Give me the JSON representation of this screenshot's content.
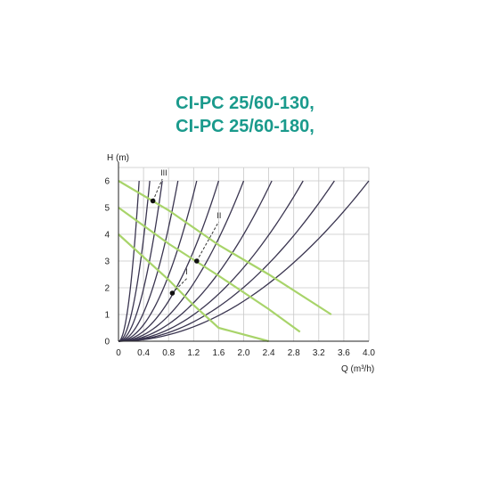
{
  "title_lines": [
    "CI-PC 25/60-130,",
    "CI-PC 25/60-180,"
  ],
  "chart_data": {
    "type": "line",
    "xlabel": "Q (m³/h)",
    "ylabel": "H (m)",
    "xlim": [
      0,
      4.0
    ],
    "ylim": [
      0,
      6.5
    ],
    "x_ticks": [
      "0",
      "0.4",
      "0.8",
      "1.2",
      "1.6",
      "2.0",
      "2.4",
      "2.8",
      "3.2",
      "3.6",
      "4.0"
    ],
    "y_ticks": [
      "0",
      "1",
      "2",
      "3",
      "4",
      "5",
      "6"
    ],
    "grid": true,
    "pump_curves": [
      {
        "label": "I",
        "points": [
          [
            0,
            4.0
          ],
          [
            0.8,
            2.3
          ],
          [
            1.2,
            1.35
          ],
          [
            1.6,
            0.5
          ],
          [
            2.4,
            0
          ]
        ]
      },
      {
        "label": "II",
        "points": [
          [
            0,
            5.0
          ],
          [
            0.8,
            3.65
          ],
          [
            1.6,
            2.45
          ],
          [
            2.4,
            1.2
          ],
          [
            2.9,
            0.35
          ]
        ]
      },
      {
        "label": "III",
        "points": [
          [
            0,
            6.0
          ],
          [
            0.8,
            4.9
          ],
          [
            1.6,
            3.6
          ],
          [
            2.4,
            2.5
          ],
          [
            3.4,
            1.0
          ]
        ]
      }
    ],
    "system_curve_endpoints_q": [
      0.33,
      0.5,
      0.7,
      0.95,
      1.25,
      1.6,
      2.0,
      2.45,
      2.95,
      3.45,
      4.0
    ],
    "system_curve_endpoint_h": 6.0,
    "duty_points": [
      {
        "label": "I",
        "q": 0.86,
        "h": 1.8
      },
      {
        "label": "II",
        "q": 1.25,
        "h": 3.0
      },
      {
        "label": "III",
        "q": 0.55,
        "h": 5.25
      }
    ],
    "duty_line_labels": [
      {
        "label": "I",
        "q": 1.1,
        "h": 2.5
      },
      {
        "label": "II",
        "q": 1.6,
        "h": 4.6
      },
      {
        "label": "III",
        "q": 0.7,
        "h": 6.2
      }
    ]
  }
}
